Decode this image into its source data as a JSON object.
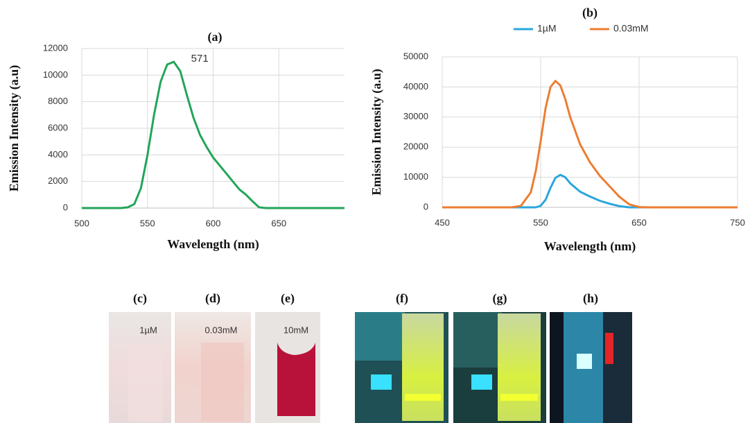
{
  "chart_data": [
    {
      "type": "line",
      "title": "(a)",
      "x_label": "Wavelength (nm)",
      "y_label": "Emission Intensity (a.u)",
      "annotation": "571",
      "x": [
        500,
        530,
        535,
        540,
        545,
        550,
        555,
        560,
        565,
        570,
        575,
        580,
        585,
        590,
        595,
        600,
        605,
        610,
        615,
        620,
        625,
        630,
        635,
        640,
        700
      ],
      "series": [
        {
          "color": "#22a559",
          "values": [
            0,
            0,
            50,
            300,
            1500,
            4000,
            7000,
            9500,
            10800,
            11000,
            10300,
            8500,
            6800,
            5500,
            4600,
            3800,
            3200,
            2600,
            2000,
            1400,
            1000,
            500,
            50,
            0,
            0
          ]
        }
      ],
      "xlim": [
        500,
        700
      ],
      "xticks": [
        500,
        550,
        600,
        650
      ],
      "ylim": [
        0,
        12000
      ],
      "yticks": [
        0,
        2000,
        4000,
        6000,
        8000,
        10000,
        12000
      ],
      "grid": true
    },
    {
      "type": "line",
      "title": "(b)",
      "x_label": "Wavelength (nm)",
      "y_label": "Emission Intensity (a.u)",
      "x": [
        450,
        500,
        520,
        530,
        540,
        545,
        550,
        555,
        560,
        565,
        570,
        575,
        580,
        590,
        600,
        610,
        620,
        630,
        640,
        650,
        660,
        750
      ],
      "series": [
        {
          "name": "1µM",
          "color": "#2aa6dc",
          "values": [
            0,
            0,
            0,
            0,
            0,
            0,
            500,
            2500,
            6500,
            9800,
            10800,
            10000,
            8000,
            5200,
            3600,
            2200,
            1200,
            400,
            0,
            0,
            0,
            0
          ]
        },
        {
          "name": "0.03mM",
          "color": "#ed7d31",
          "values": [
            0,
            0,
            0,
            500,
            5000,
            12000,
            22000,
            33000,
            40000,
            42000,
            40500,
            36000,
            30000,
            21000,
            15000,
            10500,
            7000,
            3500,
            1000,
            100,
            0,
            0
          ]
        }
      ],
      "xlim": [
        450,
        750
      ],
      "xticks": [
        450,
        550,
        650,
        750
      ],
      "ylim": [
        0,
        50000
      ],
      "yticks": [
        0,
        10000,
        20000,
        30000,
        40000,
        50000
      ],
      "grid": true,
      "legend": "top"
    }
  ],
  "photos": [
    {
      "label": "(c)",
      "caption": "1µM"
    },
    {
      "label": "(d)",
      "caption": "0.03mM"
    },
    {
      "label": "(e)",
      "caption": "10mM"
    },
    {
      "label": "(f)"
    },
    {
      "label": "(g)"
    },
    {
      "label": "(h)"
    }
  ]
}
